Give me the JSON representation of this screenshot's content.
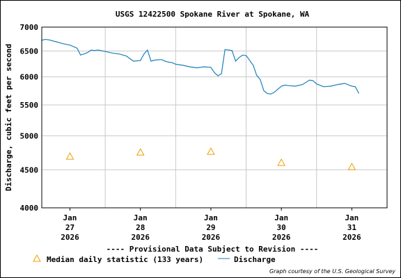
{
  "chart_data": {
    "type": "line",
    "title": "USGS 12422500 Spokane River at Spokane, WA",
    "ylabel": "Discharge, cubic feet per second",
    "xlabel": "",
    "scale": "log",
    "ylim": [
      4000,
      7000
    ],
    "xlim": [
      26.6,
      31.5
    ],
    "grid": true,
    "y_ticks": [
      {
        "value": 4000,
        "label": "4000"
      },
      {
        "value": 4500,
        "label": "4500"
      },
      {
        "value": 5000,
        "label": "5000"
      },
      {
        "value": 5500,
        "label": "5500"
      },
      {
        "value": 6000,
        "label": "6000"
      },
      {
        "value": 6500,
        "label": "6500"
      },
      {
        "value": 7000,
        "label": "7000"
      }
    ],
    "x_ticks": [
      {
        "value": 27,
        "month": "Jan",
        "day": "27",
        "year": "2026"
      },
      {
        "value": 28,
        "month": "Jan",
        "day": "28",
        "year": "2026"
      },
      {
        "value": 29,
        "month": "Jan",
        "day": "29",
        "year": "2026"
      },
      {
        "value": 30,
        "month": "Jan",
        "day": "30",
        "year": "2026"
      },
      {
        "value": 31,
        "month": "Jan",
        "day": "31",
        "year": "2026"
      }
    ],
    "series": [
      {
        "name": "Discharge",
        "color": "#1a7fba",
        "x": [
          26.6,
          26.65,
          26.7,
          26.8,
          26.9,
          27.0,
          27.1,
          27.15,
          27.2,
          27.25,
          27.3,
          27.35,
          27.4,
          27.5,
          27.6,
          27.7,
          27.8,
          27.9,
          28.0,
          28.05,
          28.1,
          28.15,
          28.2,
          28.3,
          28.35,
          28.4,
          28.45,
          28.5,
          28.6,
          28.7,
          28.8,
          28.9,
          29.0,
          29.05,
          29.1,
          29.15,
          29.2,
          29.3,
          29.35,
          29.4,
          29.45,
          29.5,
          29.6,
          29.65,
          29.7,
          29.75,
          29.8,
          29.85,
          29.9,
          30.0,
          30.05,
          30.1,
          30.2,
          30.3,
          30.4,
          30.45,
          30.5,
          30.6,
          30.7,
          30.8,
          30.9,
          31.0,
          31.05,
          31.1
        ],
        "y": [
          6720,
          6740,
          6730,
          6690,
          6650,
          6620,
          6560,
          6420,
          6440,
          6470,
          6520,
          6510,
          6520,
          6490,
          6460,
          6440,
          6400,
          6300,
          6310,
          6440,
          6520,
          6300,
          6320,
          6330,
          6300,
          6280,
          6270,
          6240,
          6220,
          6190,
          6170,
          6190,
          6180,
          6080,
          6020,
          6060,
          6530,
          6510,
          6300,
          6370,
          6420,
          6410,
          6220,
          6030,
          5950,
          5750,
          5700,
          5690,
          5720,
          5830,
          5850,
          5840,
          5830,
          5860,
          5940,
          5930,
          5870,
          5820,
          5830,
          5860,
          5880,
          5830,
          5820,
          5700
        ]
      },
      {
        "name": "Median daily statistic (133 years)",
        "marker": "triangle",
        "color": "#e8a000",
        "x": [
          27.0,
          28.0,
          29.0,
          30.0,
          31.0
        ],
        "y": [
          4690,
          4750,
          4760,
          4600,
          4540
        ]
      }
    ],
    "legend": [
      {
        "label": "Median daily statistic (133 years)",
        "marker": "triangle",
        "color": "#e8a000"
      },
      {
        "label": "Discharge",
        "marker": "line",
        "color": "#1a7fba"
      }
    ],
    "legend_position": "bottom",
    "annotations": {
      "provisional": "---- Provisional Data Subject to Revision ----",
      "provisional_color": "#cc0000",
      "credit": "Graph courtesy of the U.S. Geological Survey"
    }
  }
}
